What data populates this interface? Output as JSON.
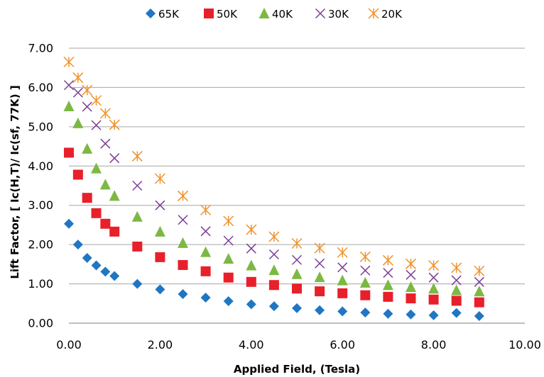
{
  "chart_data": {
    "type": "scatter",
    "xlabel": "Applied Field, (Tesla)",
    "ylabel": "Lift Factor, [ Ic(H,T)/ Ic(sf, 77K) ]",
    "xlim": [
      0,
      10
    ],
    "ylim": [
      0,
      7
    ],
    "x_ticks": [
      "0.00",
      "2.00",
      "4.00",
      "6.00",
      "8.00",
      "10.00"
    ],
    "y_ticks": [
      "0.00",
      "1.00",
      "2.00",
      "3.00",
      "4.00",
      "5.00",
      "6.00",
      "7.00"
    ],
    "grid": "horizontal",
    "legend_position": "top",
    "x": [
      0,
      0.2,
      0.4,
      0.6,
      0.8,
      1.0,
      1.5,
      2.0,
      2.5,
      3.0,
      3.5,
      4.0,
      4.5,
      5.0,
      5.5,
      6.0,
      6.5,
      7.0,
      7.5,
      8.0,
      8.5,
      9.0
    ],
    "series": [
      {
        "name": "65K",
        "marker": "diamond",
        "color": "#1F77C4",
        "values": [
          2.53,
          2.0,
          1.66,
          1.47,
          1.31,
          1.2,
          1.0,
          0.86,
          0.74,
          0.65,
          0.56,
          0.48,
          0.43,
          0.38,
          0.33,
          0.3,
          0.27,
          0.24,
          0.22,
          0.2,
          0.26,
          0.18
        ]
      },
      {
        "name": "50K",
        "marker": "square",
        "color": "#E8202A",
        "values": [
          4.34,
          3.78,
          3.19,
          2.8,
          2.53,
          2.33,
          1.95,
          1.68,
          1.48,
          1.32,
          1.16,
          1.05,
          0.97,
          0.88,
          0.81,
          0.76,
          0.71,
          0.67,
          0.63,
          0.6,
          0.57,
          0.53
        ]
      },
      {
        "name": "40K",
        "marker": "triangle",
        "color": "#7DB843",
        "values": [
          5.52,
          5.09,
          4.44,
          3.94,
          3.53,
          3.24,
          2.71,
          2.33,
          2.04,
          1.81,
          1.64,
          1.47,
          1.35,
          1.25,
          1.17,
          1.09,
          1.03,
          0.97,
          0.92,
          0.88,
          0.84,
          0.81
        ]
      },
      {
        "name": "30K",
        "marker": "x",
        "color": "#7C3E96",
        "values": [
          6.06,
          5.87,
          5.51,
          5.04,
          4.57,
          4.2,
          3.5,
          3.0,
          2.63,
          2.34,
          2.1,
          1.9,
          1.75,
          1.61,
          1.52,
          1.42,
          1.34,
          1.28,
          1.23,
          1.16,
          1.09,
          1.05
        ]
      },
      {
        "name": "20K",
        "marker": "star",
        "color": "#F0922B",
        "values": [
          6.65,
          6.25,
          5.93,
          5.67,
          5.34,
          5.05,
          4.25,
          3.68,
          3.24,
          2.88,
          2.6,
          2.38,
          2.2,
          2.03,
          1.91,
          1.8,
          1.69,
          1.6,
          1.51,
          1.47,
          1.41,
          1.33
        ]
      }
    ]
  }
}
